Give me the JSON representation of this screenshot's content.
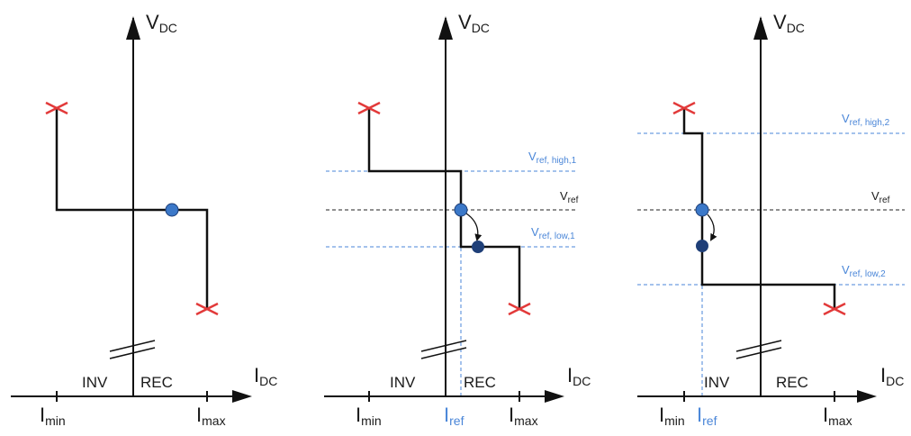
{
  "colors": {
    "axis": "#111111",
    "curve": "#111111",
    "ref_line_black": "#222222",
    "ref_line_blue": "#4a86d8",
    "point_light": "#3b78c8",
    "point_dark": "#1f3f78",
    "cross": "#e23a3a"
  },
  "labels": {
    "v_main": "V",
    "v_sub": "DC",
    "i_main": "I",
    "i_sub": "DC",
    "inv": "INV",
    "rec": "REC",
    "imin_main": "I",
    "imin_sub": "min",
    "imax_main": "I",
    "imax_sub": "max",
    "iref_main": "I",
    "iref_sub": "ref",
    "vref_main": "V",
    "vref_sub": "ref",
    "vref_high1_sub": "ref, high,1",
    "vref_low1_sub": "ref, low,1",
    "vref_high2_sub": "ref, high,2",
    "vref_low2_sub": "ref, low,2"
  }
}
